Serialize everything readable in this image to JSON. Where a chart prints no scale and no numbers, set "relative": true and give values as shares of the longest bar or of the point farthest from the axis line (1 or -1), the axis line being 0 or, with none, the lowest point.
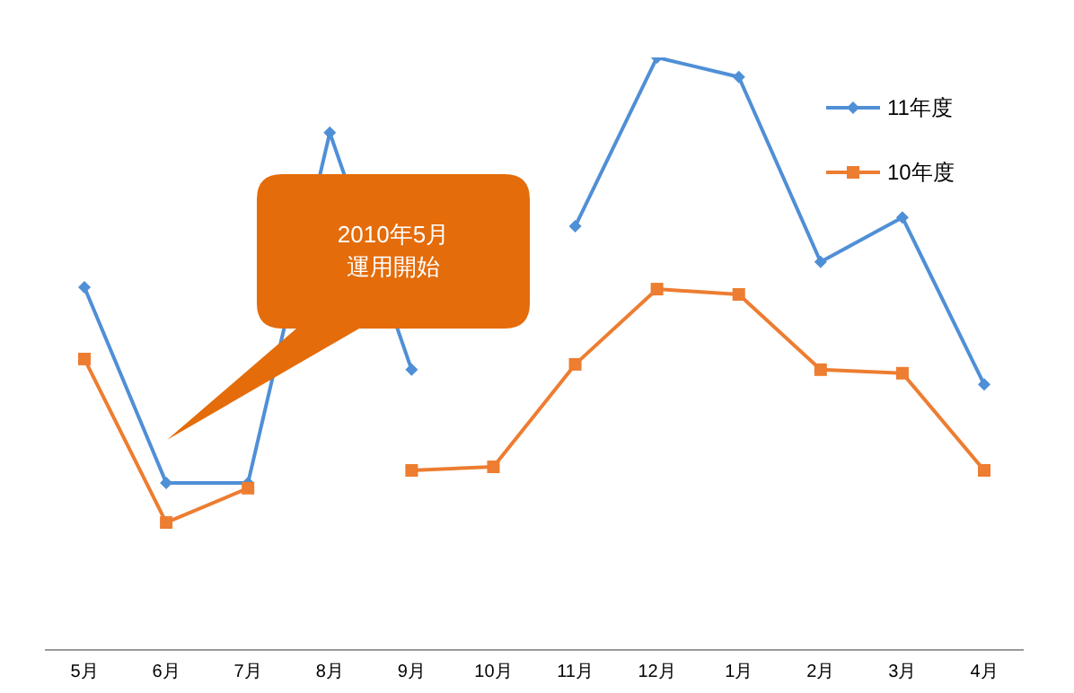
{
  "chart_data": {
    "type": "line",
    "relative": true,
    "categories": [
      "5月",
      "6月",
      "7月",
      "8月",
      "9月",
      "10月",
      "11月",
      "12月",
      "1月",
      "2月",
      "3月",
      "4月"
    ],
    "series": [
      {
        "name": "11年度",
        "color": "#4f8fd6",
        "marker": "diamond",
        "values": [
          0.612,
          0.282,
          0.282,
          0.873,
          0.473,
          null,
          0.715,
          1,
          0.967,
          0.655,
          0.73,
          0.448
        ]
      },
      {
        "name": "10年度",
        "color": "#ed7d31",
        "marker": "square",
        "values": [
          0.491,
          0.215,
          0.273,
          null,
          0.303,
          0.309,
          0.482,
          0.609,
          0.6,
          0.473,
          0.467,
          0.303
        ]
      }
    ],
    "legend": "top right",
    "grid": false,
    "annotations": [
      "2010年5月",
      "運用開始"
    ]
  }
}
